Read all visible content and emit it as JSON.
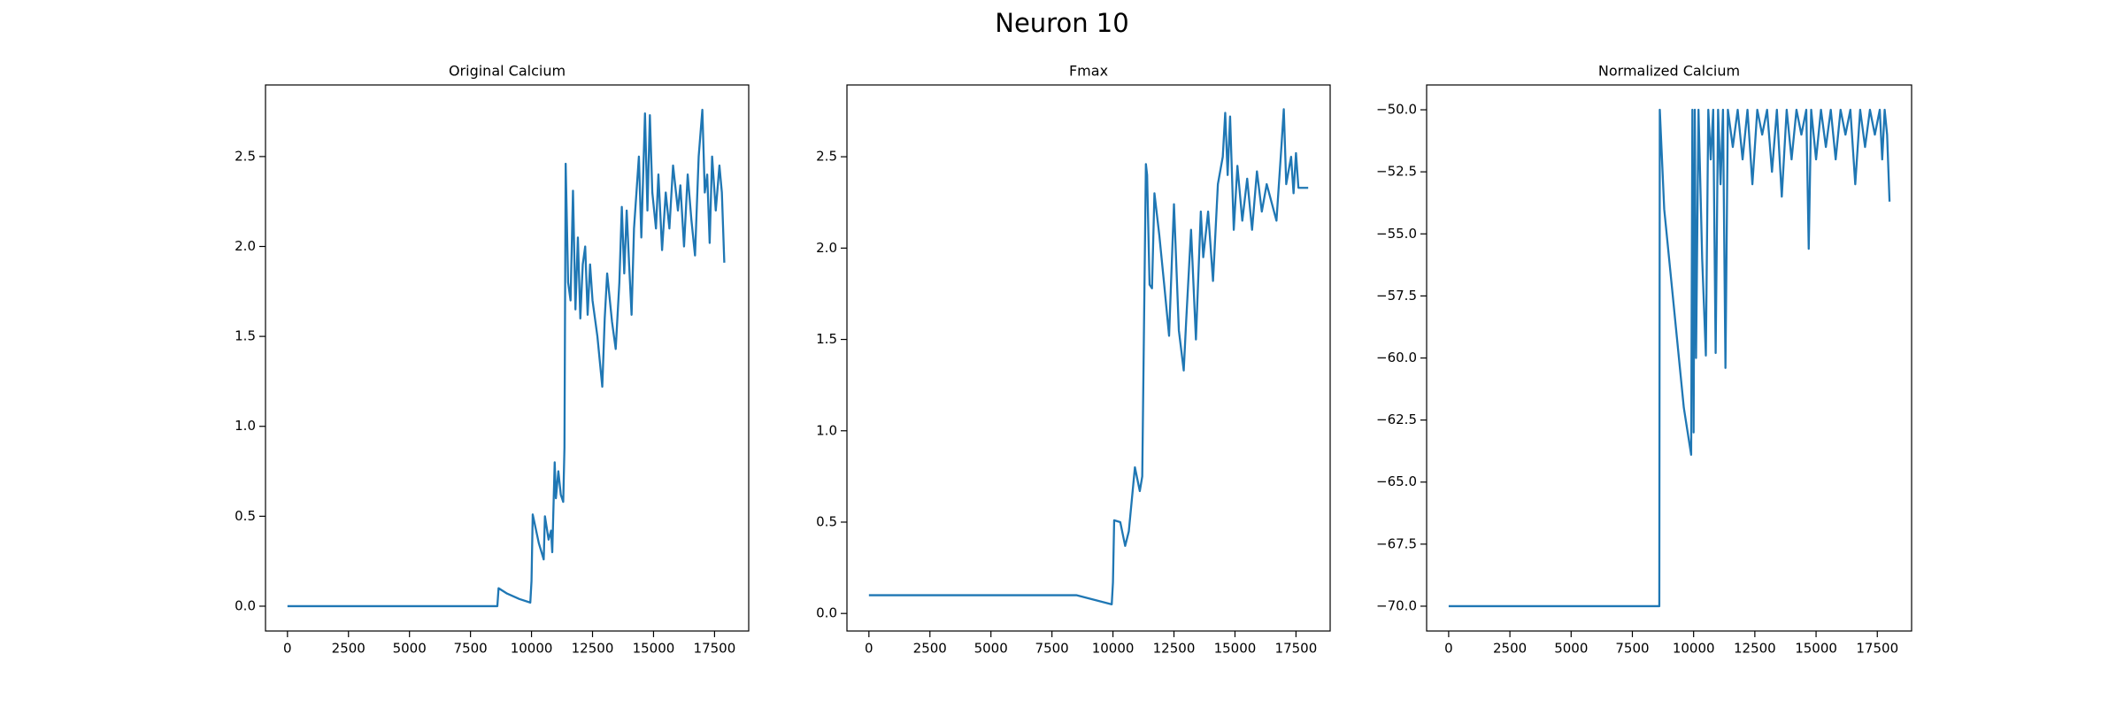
{
  "title": "Neuron 10",
  "chart_data": [
    {
      "type": "line",
      "title": "Original Calcium",
      "color": "#1f77b4",
      "x": [
        0,
        8600,
        8650,
        9000,
        9500,
        9950,
        10000,
        10050,
        10300,
        10500,
        10550,
        10700,
        10800,
        10850,
        10950,
        11000,
        11100,
        11200,
        11300,
        11350,
        11400,
        11500,
        11600,
        11700,
        11800,
        11900,
        12000,
        12100,
        12200,
        12300,
        12400,
        12500,
        12700,
        12900,
        13000,
        13100,
        13300,
        13450,
        13600,
        13700,
        13800,
        13900,
        14000,
        14100,
        14200,
        14400,
        14500,
        14650,
        14750,
        14850,
        14950,
        15100,
        15200,
        15350,
        15500,
        15650,
        15800,
        16000,
        16100,
        16250,
        16400,
        16550,
        16700,
        16850,
        17000,
        17100,
        17200,
        17300,
        17400,
        17550,
        17700,
        17800,
        17900
      ],
      "values": [
        0,
        0,
        0.1,
        0.07,
        0.04,
        0.02,
        0.14,
        0.51,
        0.35,
        0.26,
        0.5,
        0.37,
        0.42,
        0.3,
        0.8,
        0.6,
        0.75,
        0.62,
        0.58,
        0.88,
        2.46,
        1.8,
        1.7,
        2.31,
        1.65,
        2.05,
        1.6,
        1.9,
        2.0,
        1.62,
        1.9,
        1.7,
        1.5,
        1.22,
        1.6,
        1.85,
        1.58,
        1.43,
        1.8,
        2.22,
        1.85,
        2.2,
        1.9,
        1.62,
        2.1,
        2.5,
        2.05,
        2.74,
        2.2,
        2.73,
        2.3,
        2.1,
        2.4,
        1.98,
        2.3,
        2.1,
        2.45,
        2.2,
        2.34,
        2.0,
        2.4,
        2.15,
        1.95,
        2.5,
        2.76,
        2.3,
        2.4,
        2.02,
        2.5,
        2.2,
        2.45,
        2.3,
        1.91
      ],
      "xlim": [
        -900,
        18900
      ],
      "xticks": [
        0,
        2500,
        5000,
        7500,
        10000,
        12500,
        15000,
        17500
      ],
      "ylim": [
        -0.138,
        2.898
      ],
      "yticks": [
        {
          "value": 0,
          "label": "0.0"
        },
        0.5,
        {
          "value": 1,
          "label": "1.0"
        },
        1.5,
        {
          "value": 2,
          "label": "2.0"
        },
        2.5
      ]
    },
    {
      "type": "line",
      "title": "Fmax",
      "color": "#1f77b4",
      "x": [
        0,
        8500,
        9950,
        10000,
        10050,
        10300,
        10500,
        10650,
        10900,
        11100,
        11200,
        11350,
        11400,
        11500,
        11600,
        11700,
        11900,
        12100,
        12300,
        12500,
        12700,
        12900,
        13000,
        13200,
        13400,
        13600,
        13700,
        13900,
        14100,
        14300,
        14500,
        14600,
        14700,
        14800,
        14950,
        15100,
        15300,
        15500,
        15700,
        15900,
        16100,
        16300,
        16500,
        16700,
        16900,
        17000,
        17100,
        17300,
        17400,
        17500,
        17600,
        18000
      ],
      "values": [
        0.1,
        0.1,
        0.05,
        0.17,
        0.51,
        0.5,
        0.37,
        0.45,
        0.8,
        0.67,
        0.75,
        2.46,
        2.4,
        1.8,
        1.78,
        2.3,
        2.07,
        1.8,
        1.52,
        2.24,
        1.55,
        1.33,
        1.6,
        2.1,
        1.5,
        2.2,
        1.95,
        2.2,
        1.82,
        2.35,
        2.5,
        2.74,
        2.4,
        2.72,
        2.1,
        2.45,
        2.15,
        2.38,
        2.1,
        2.42,
        2.2,
        2.35,
        2.25,
        2.15,
        2.55,
        2.76,
        2.35,
        2.5,
        2.3,
        2.52,
        2.33,
        2.33
      ],
      "xlim": [
        -900,
        18900
      ],
      "xticks": [
        0,
        2500,
        5000,
        7500,
        10000,
        12500,
        15000,
        17500
      ],
      "ylim": [
        -0.096,
        2.893
      ],
      "yticks": [
        {
          "value": 0,
          "label": "0.0"
        },
        0.5,
        {
          "value": 1,
          "label": "1.0"
        },
        1.5,
        {
          "value": 2,
          "label": "2.0"
        },
        2.5
      ]
    },
    {
      "type": "line",
      "title": "Normalized Calcium",
      "color": "#1f77b4",
      "x": [
        0,
        8600,
        8620,
        8800,
        9200,
        9600,
        9900,
        9950,
        10000,
        10050,
        10100,
        10200,
        10350,
        10500,
        10600,
        10700,
        10800,
        10900,
        11000,
        11100,
        11200,
        11300,
        11400,
        11600,
        11800,
        12000,
        12200,
        12400,
        12600,
        12800,
        13000,
        13200,
        13400,
        13600,
        13800,
        14000,
        14200,
        14400,
        14600,
        14700,
        14800,
        15000,
        15200,
        15400,
        15600,
        15800,
        16000,
        16200,
        16400,
        16600,
        16800,
        17000,
        17200,
        17400,
        17600,
        17700,
        17800,
        17900,
        18000
      ],
      "values": [
        -70,
        -70,
        -50,
        -54,
        -58,
        -62,
        -63.9,
        -50,
        -63,
        -50,
        -60,
        -50,
        -56,
        -59.9,
        -50,
        -52,
        -50,
        -59.8,
        -50,
        -53,
        -50,
        -60.4,
        -50,
        -51.5,
        -50,
        -52,
        -50,
        -53,
        -50,
        -51,
        -50,
        -52.5,
        -50,
        -53.5,
        -50,
        -52,
        -50,
        -51,
        -50,
        -55.6,
        -50,
        -52,
        -50,
        -51.5,
        -50,
        -52,
        -50,
        -51,
        -50,
        -53,
        -50,
        -51.5,
        -50,
        -51,
        -50,
        -52,
        -50,
        -51,
        -53.7
      ],
      "xlim": [
        -900,
        18900
      ],
      "xticks": [
        0,
        2500,
        5000,
        7500,
        10000,
        12500,
        15000,
        17500
      ],
      "ylim": [
        -71,
        -49
      ],
      "yticks": [
        {
          "value": -70,
          "label": "−70.0"
        },
        {
          "value": -67.5,
          "label": "−67.5"
        },
        {
          "value": -65,
          "label": "−65.0"
        },
        {
          "value": -62.5,
          "label": "−62.5"
        },
        {
          "value": -60,
          "label": "−60.0"
        },
        {
          "value": -57.5,
          "label": "−57.5"
        },
        {
          "value": -55,
          "label": "−55.0"
        },
        {
          "value": -52.5,
          "label": "−52.5"
        },
        {
          "value": -50,
          "label": "−50.0"
        }
      ]
    }
  ]
}
